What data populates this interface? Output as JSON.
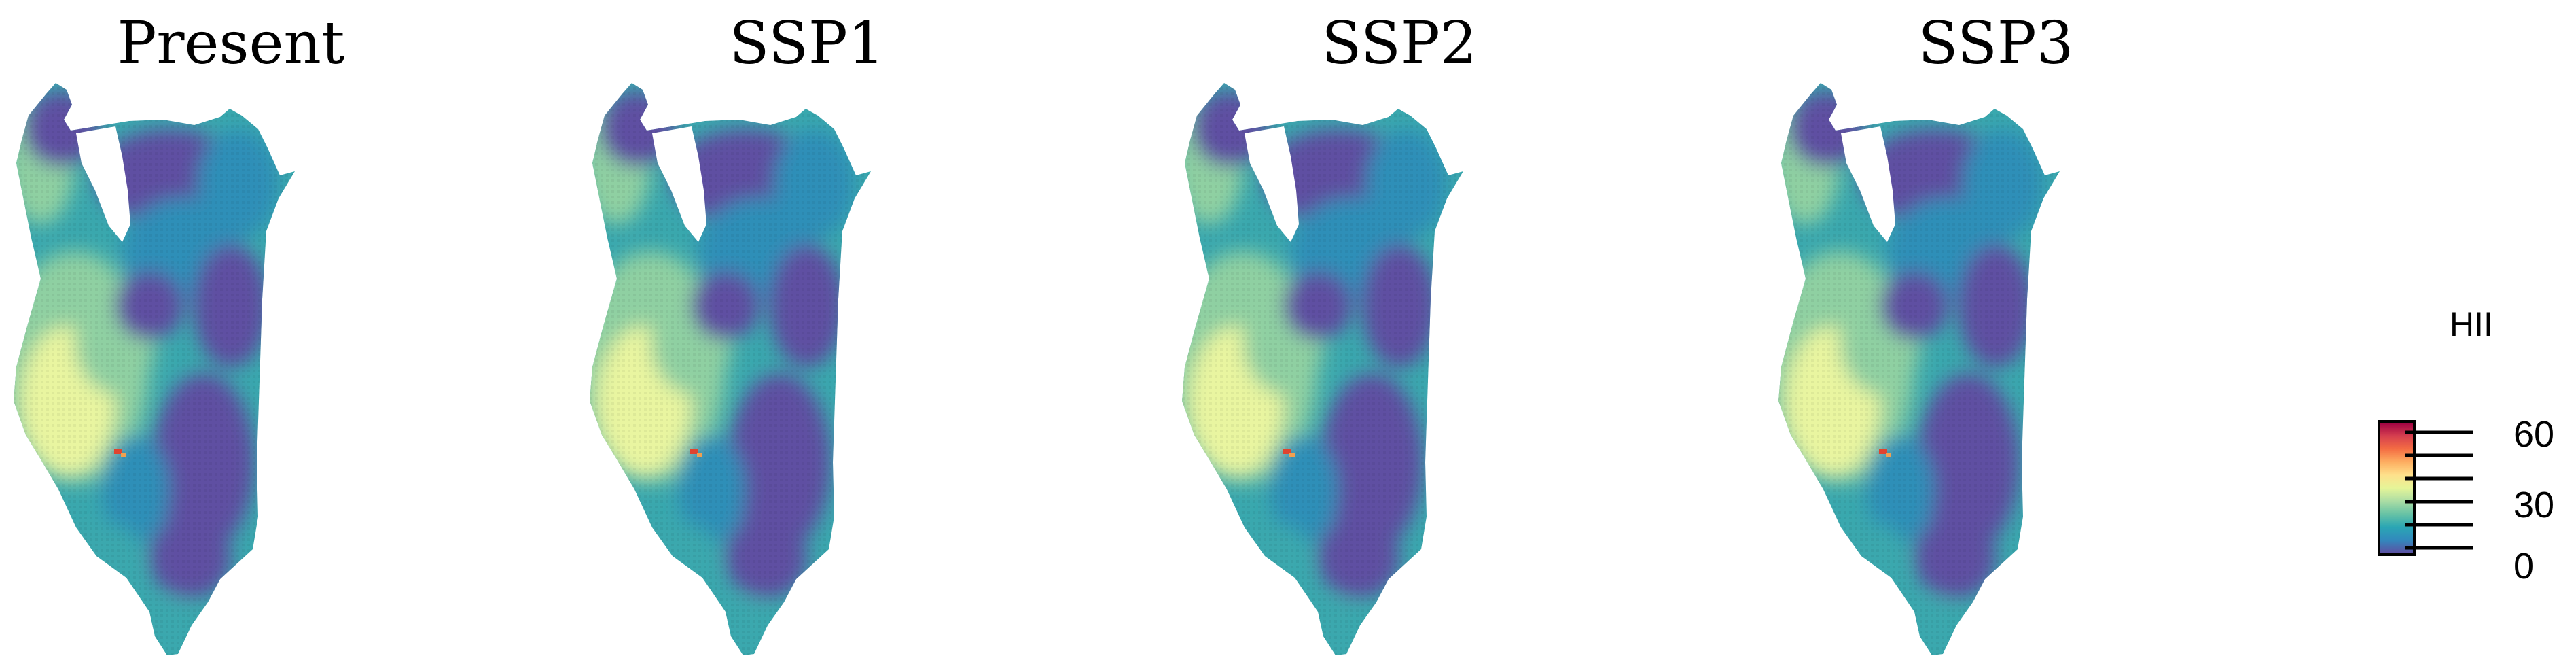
{
  "panels": [
    {
      "title": "Present"
    },
    {
      "title": "SSP1"
    },
    {
      "title": "SSP2"
    },
    {
      "title": "SSP3"
    }
  ],
  "legend": {
    "title": "HII",
    "min": 0,
    "max": 60,
    "tick_labels": [
      "60",
      "30",
      "0"
    ],
    "colors": [
      "#5e4fa2",
      "#3288bd",
      "#2aa6b4",
      "#66c2a5",
      "#abdda4",
      "#e6f598",
      "#fee08b",
      "#fdae61",
      "#f46d43",
      "#d53e4f",
      "#9e0142"
    ]
  },
  "map_colors": {
    "low": "#5e4fa2",
    "mid_low": "#2f8fb8",
    "mid": "#3aa8ae",
    "mid_high": "#8fd0a2",
    "high": "#e9f5a0",
    "hotspot": "#e0442f"
  }
}
